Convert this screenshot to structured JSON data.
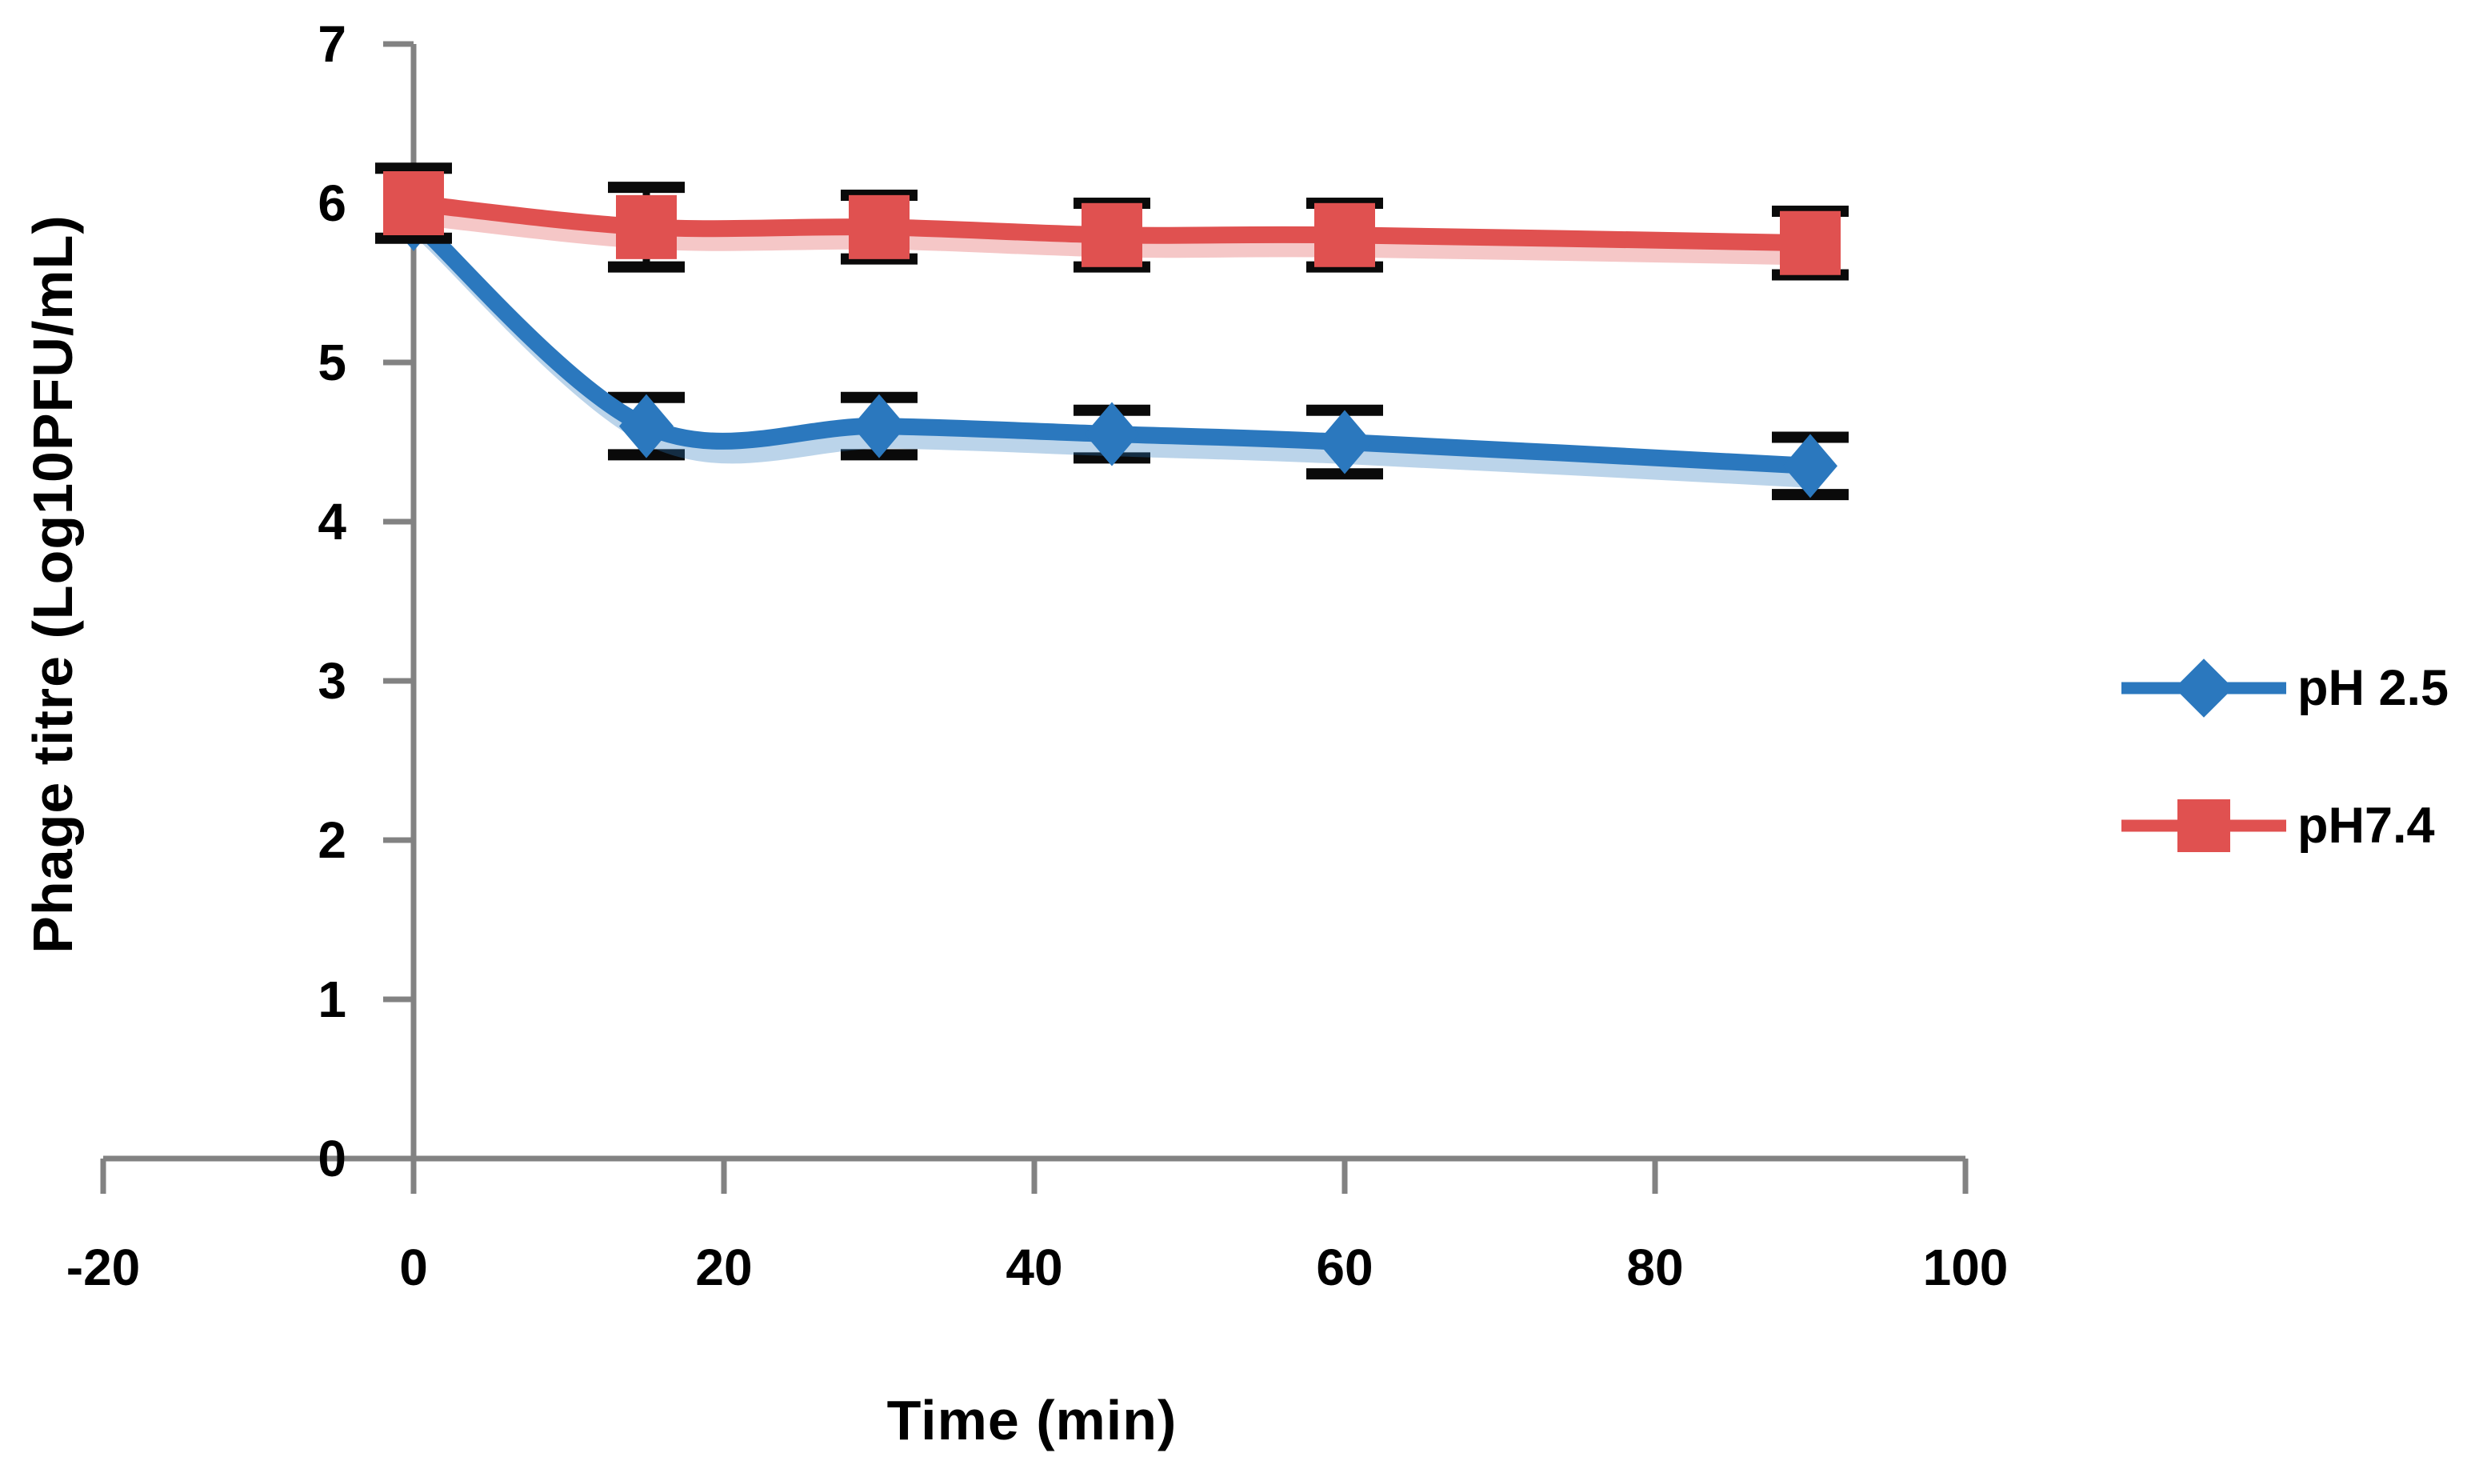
{
  "chart_data": {
    "type": "line",
    "title": "",
    "xlabel": "Time (min)",
    "ylabel": "Phage titre (Log10PFU/mL)",
    "x": [
      0,
      15,
      30,
      45,
      60,
      90
    ],
    "series": [
      {
        "name": "pH 2.5",
        "marker": "diamond",
        "color": "#2B78BE",
        "values": [
          5.9,
          4.6,
          4.6,
          4.55,
          4.5,
          4.35
        ],
        "errors": [
          0,
          0.18,
          0.18,
          0.15,
          0.2,
          0.18
        ]
      },
      {
        "name": "pH7.4",
        "marker": "square",
        "color": "#E05150",
        "values": [
          6.0,
          5.85,
          5.85,
          5.8,
          5.8,
          5.75
        ],
        "errors": [
          0.22,
          0.25,
          0.2,
          0.2,
          0.2,
          0.2
        ]
      }
    ],
    "xticks": [
      -20,
      0,
      20,
      40,
      60,
      80,
      100
    ],
    "yticks": [
      0,
      1,
      2,
      3,
      4,
      5,
      6,
      7
    ],
    "xlim": [
      -20,
      100
    ],
    "ylim": [
      0,
      7
    ],
    "grid": false,
    "legend_position": "right-middle",
    "axis_color": "#828282",
    "error_bar_color": "#0a0a0a"
  }
}
